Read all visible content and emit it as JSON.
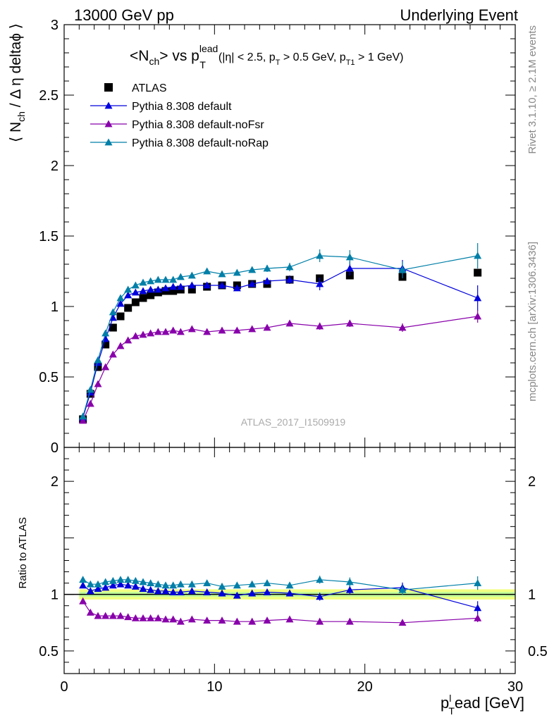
{
  "header": {
    "left": "13000 GeV pp",
    "right": "Underlying Event"
  },
  "side_labels": {
    "rivet": "Rivet 3.1.10, ≥ 2.1M events",
    "mcplots": "mcplots.cern.ch [arXiv:1306.3436]"
  },
  "plot_title": {
    "main": "<N",
    "sub1": "ch",
    "mid": "> vs p",
    "sup": "lead",
    "sub2": "T",
    "cuts_a": "(|η| < 2.5, p",
    "cuts_b": "T",
    "cuts_c": " > 0.5 GeV, p",
    "cuts_d": "T1",
    "cuts_e": " > 1 GeV)"
  },
  "watermark": "ATLAS_2017_I1509919",
  "colors": {
    "atlas": "#000000",
    "default": "#0000dd",
    "noFsr": "#8800aa",
    "noRap": "#007fa8",
    "band_outer": "#f2ff7f",
    "band_inner": "#c4ff9a"
  },
  "chart_data": [
    {
      "type": "scatter",
      "panel": "main",
      "ylabel": "⟨ N_ch / Δ η deltaϕ ⟩",
      "ylabel_parts": {
        "pre": "⟨ N",
        "sub": "ch",
        "post": " / Δ η deltaϕ ⟩"
      },
      "xlim": [
        0,
        30
      ],
      "ylim": [
        0,
        3
      ],
      "yticks": [
        0,
        0.5,
        1,
        1.5,
        2,
        2.5,
        3
      ],
      "ytick_labels": [
        "0",
        "0.5",
        "1",
        "1.5",
        "2",
        "2.5",
        "3"
      ],
      "legend_position": "top-left",
      "x": [
        1.25,
        1.75,
        2.25,
        2.75,
        3.25,
        3.75,
        4.25,
        4.75,
        5.25,
        5.75,
        6.25,
        6.75,
        7.25,
        7.75,
        8.5,
        9.5,
        10.5,
        11.5,
        12.5,
        13.5,
        15,
        17,
        19,
        22.5,
        27.5
      ],
      "series": [
        {
          "name": "ATLAS",
          "marker": "square",
          "values": [
            0.2,
            0.38,
            0.57,
            0.73,
            0.85,
            0.93,
            0.99,
            1.03,
            1.06,
            1.08,
            1.1,
            1.11,
            1.11,
            1.12,
            1.12,
            1.14,
            1.15,
            1.15,
            1.16,
            1.16,
            1.19,
            1.2,
            1.22,
            1.21,
            1.24
          ],
          "errors": [
            0.005,
            0.005,
            0.01,
            0.01,
            0.01,
            0.01,
            0.01,
            0.01,
            0.01,
            0.01,
            0.01,
            0.01,
            0.01,
            0.01,
            0.01,
            0.01,
            0.01,
            0.01,
            0.01,
            0.01,
            0.01,
            0.01,
            0.015,
            0.015,
            0.02
          ]
        },
        {
          "name": "Pythia 8.308 default",
          "marker": "triangle",
          "values": [
            0.21,
            0.39,
            0.6,
            0.77,
            0.92,
            1.02,
            1.08,
            1.1,
            1.11,
            1.12,
            1.12,
            1.13,
            1.14,
            1.14,
            1.15,
            1.15,
            1.15,
            1.13,
            1.16,
            1.18,
            1.19,
            1.16,
            1.27,
            1.27,
            1.06
          ],
          "errors": [
            0.01,
            0.01,
            0.01,
            0.01,
            0.01,
            0.01,
            0.01,
            0.01,
            0.01,
            0.01,
            0.01,
            0.01,
            0.01,
            0.01,
            0.01,
            0.015,
            0.015,
            0.02,
            0.02,
            0.025,
            0.03,
            0.045,
            0.05,
            0.06,
            0.09
          ]
        },
        {
          "name": "Pythia 8.308 default-noFsr",
          "marker": "triangle",
          "values": [
            0.19,
            0.31,
            0.45,
            0.57,
            0.66,
            0.72,
            0.76,
            0.79,
            0.8,
            0.81,
            0.82,
            0.82,
            0.83,
            0.82,
            0.84,
            0.82,
            0.83,
            0.83,
            0.84,
            0.85,
            0.88,
            0.86,
            0.88,
            0.85,
            0.93
          ],
          "errors": [
            0.005,
            0.005,
            0.01,
            0.01,
            0.01,
            0.01,
            0.01,
            0.01,
            0.01,
            0.01,
            0.01,
            0.01,
            0.01,
            0.01,
            0.01,
            0.01,
            0.01,
            0.015,
            0.015,
            0.015,
            0.02,
            0.025,
            0.025,
            0.03,
            0.045
          ]
        },
        {
          "name": "Pythia 8.308 default-noRap",
          "marker": "triangle",
          "values": [
            0.22,
            0.41,
            0.62,
            0.81,
            0.96,
            1.06,
            1.12,
            1.15,
            1.17,
            1.18,
            1.19,
            1.19,
            1.19,
            1.21,
            1.22,
            1.25,
            1.23,
            1.24,
            1.26,
            1.27,
            1.28,
            1.36,
            1.35,
            1.26,
            1.36
          ],
          "errors": [
            0.01,
            0.01,
            0.01,
            0.01,
            0.01,
            0.01,
            0.01,
            0.01,
            0.01,
            0.01,
            0.01,
            0.01,
            0.01,
            0.01,
            0.015,
            0.015,
            0.015,
            0.02,
            0.02,
            0.025,
            0.03,
            0.045,
            0.05,
            0.06,
            0.09
          ]
        }
      ]
    },
    {
      "type": "scatter",
      "panel": "ratio",
      "ylabel": "Ratio to ATLAS",
      "xlabel_parts": {
        "pre": "p",
        "sub": "T",
        "sup": "l",
        "post": "ead [GeV]"
      },
      "xlim": [
        0,
        30
      ],
      "xticks": [
        0,
        10,
        20,
        30
      ],
      "xtick_labels": [
        "0",
        "10",
        "20",
        "30"
      ],
      "ylim": [
        0.3,
        2.3
      ],
      "yticks": [
        0.5,
        1,
        2
      ],
      "ytick_labels": [
        "0.5",
        "1",
        "2"
      ],
      "reference_line": 1,
      "band_outer": 0.045,
      "band_inner": 0.022,
      "x": [
        1.25,
        1.75,
        2.25,
        2.75,
        3.25,
        3.75,
        4.25,
        4.75,
        5.25,
        5.75,
        6.25,
        6.75,
        7.25,
        7.75,
        8.5,
        9.5,
        10.5,
        11.5,
        12.5,
        13.5,
        15,
        17,
        19,
        22.5,
        27.5
      ],
      "series": [
        {
          "name": "Pythia 8.308 default",
          "values": [
            1.08,
            1.03,
            1.05,
            1.06,
            1.08,
            1.09,
            1.08,
            1.07,
            1.05,
            1.04,
            1.03,
            1.03,
            1.02,
            1.02,
            1.03,
            1.02,
            1.01,
            0.99,
            1.01,
            1.02,
            1.01,
            0.98,
            1.04,
            1.06,
            0.88
          ],
          "errors": [
            0.01,
            0.01,
            0.01,
            0.01,
            0.01,
            0.01,
            0.01,
            0.01,
            0.01,
            0.01,
            0.01,
            0.01,
            0.01,
            0.01,
            0.01,
            0.012,
            0.012,
            0.015,
            0.015,
            0.02,
            0.02,
            0.035,
            0.04,
            0.045,
            0.06
          ]
        },
        {
          "name": "Pythia 8.308 default-noFsr",
          "values": [
            0.94,
            0.84,
            0.81,
            0.81,
            0.81,
            0.81,
            0.8,
            0.79,
            0.79,
            0.79,
            0.79,
            0.78,
            0.78,
            0.76,
            0.78,
            0.77,
            0.77,
            0.76,
            0.76,
            0.77,
            0.78,
            0.76,
            0.76,
            0.75,
            0.79
          ],
          "errors": [
            0.01,
            0.01,
            0.01,
            0.01,
            0.01,
            0.01,
            0.01,
            0.01,
            0.01,
            0.01,
            0.01,
            0.01,
            0.01,
            0.01,
            0.01,
            0.01,
            0.01,
            0.012,
            0.012,
            0.012,
            0.015,
            0.02,
            0.02,
            0.025,
            0.035
          ]
        },
        {
          "name": "Pythia 8.308 default-noRap",
          "values": [
            1.13,
            1.09,
            1.09,
            1.11,
            1.12,
            1.13,
            1.13,
            1.12,
            1.11,
            1.1,
            1.09,
            1.08,
            1.08,
            1.09,
            1.09,
            1.1,
            1.07,
            1.08,
            1.09,
            1.1,
            1.08,
            1.13,
            1.11,
            1.04,
            1.1
          ],
          "errors": [
            0.01,
            0.01,
            0.01,
            0.01,
            0.01,
            0.01,
            0.01,
            0.01,
            0.01,
            0.01,
            0.01,
            0.01,
            0.01,
            0.01,
            0.01,
            0.012,
            0.012,
            0.015,
            0.015,
            0.02,
            0.02,
            0.035,
            0.04,
            0.045,
            0.06
          ]
        }
      ]
    }
  ]
}
